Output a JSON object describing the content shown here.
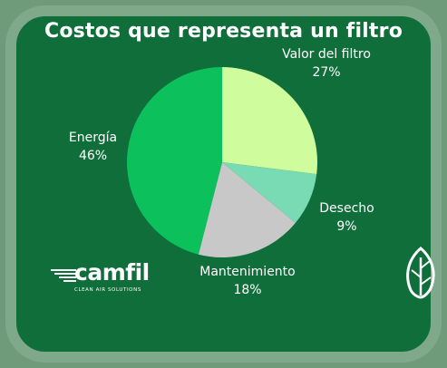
{
  "chart_data": {
    "type": "pie",
    "title": "Costos que representa un filtro",
    "slices": [
      {
        "name": "Valor del filtro",
        "value": 27,
        "label": "27%",
        "color": "#cffc9c"
      },
      {
        "name": "Desecho",
        "value": 9,
        "label": "9%",
        "color": "#79dbb4"
      },
      {
        "name": "Mantenimiento",
        "value": 18,
        "label": "18%",
        "color": "#c8c8c8"
      },
      {
        "name": "Energía",
        "value": 46,
        "label": "46%",
        "color": "#0cc15c"
      }
    ]
  },
  "brand": {
    "logo": "camfil",
    "tagline": "CLEAN AIR SOLUTIONS",
    "leaf_icon": "leaf-icon"
  }
}
